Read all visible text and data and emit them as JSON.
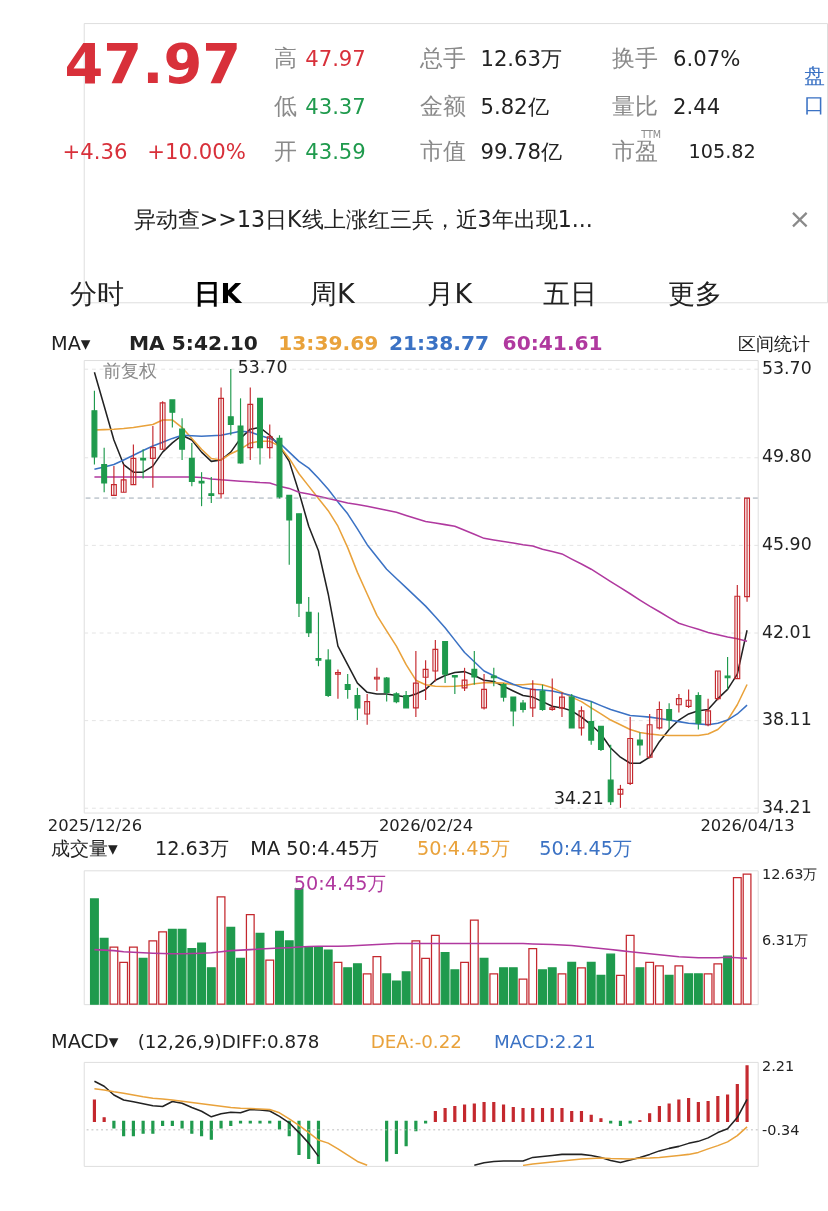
{
  "chart_data": [
    {
      "type": "other",
      "annotations": [
        "47.97",
        "+4.36",
        "+10.00%",
        "高",
        "47.97",
        "低",
        "43.37",
        "开",
        "43.59",
        "总手",
        "12.63万",
        "金额",
        "5.82亿",
        "市值",
        "99.78亿",
        "换手",
        "6.07%",
        "量比",
        "2.44",
        "市盈",
        "TTM",
        "105.82",
        "盘口",
        "异动查>>13日K线上涨红三兵，近3年出现1...",
        "×",
        "分时",
        "日K",
        "周K",
        "月K",
        "五日",
        "更多"
      ]
    },
    {
      "type": "candlestick",
      "title": "MA▾",
      "categories": [
        "2025/12/26",
        null,
        null,
        null,
        null,
        null,
        null,
        null,
        null,
        null,
        null,
        null,
        null,
        null,
        null,
        null,
        null,
        null,
        null,
        null,
        null,
        null,
        null,
        null,
        null,
        null,
        null,
        null,
        null,
        null,
        null,
        null,
        null,
        null,
        "2026/02/24",
        null,
        null,
        null,
        null,
        null,
        null,
        null,
        null,
        null,
        null,
        null,
        null,
        null,
        null,
        null,
        null,
        null,
        null,
        null,
        null,
        null,
        null,
        null,
        null,
        null,
        null,
        null,
        null,
        null,
        null,
        null,
        null,
        "2026/04/13"
      ],
      "ohlc": [
        [
          51.85,
          52.74,
          49.46,
          49.8
        ],
        [
          49.46,
          50.21,
          48.23,
          48.64
        ],
        [
          48.09,
          49.39,
          48.09,
          48.57
        ],
        [
          48.23,
          49.46,
          48.23,
          48.78
        ],
        [
          48.57,
          50.35,
          48.57,
          49.73
        ],
        [
          49.73,
          50.14,
          48.84,
          49.66
        ],
        [
          49.73,
          51.17,
          48.43,
          50.21
        ],
        [
          50.14,
          52.27,
          50.14,
          52.2
        ],
        [
          52.33,
          52.33,
          51.1,
          51.78
        ],
        [
          51.03,
          51.51,
          49.66,
          50.14
        ],
        [
          49.73,
          50.42,
          48.5,
          48.71
        ],
        [
          48.71,
          49.12,
          47.61,
          48.64
        ],
        [
          48.16,
          48.91,
          47.75,
          48.09
        ],
        [
          48.16,
          52.88,
          47.95,
          52.4
        ],
        [
          51.58,
          53.7,
          50.76,
          51.24
        ],
        [
          51.17,
          52.4,
          49.5,
          49.53
        ],
        [
          50.21,
          52.88,
          49.66,
          52.13
        ],
        [
          52.4,
          52.4,
          49.46,
          50.21
        ],
        [
          50.21,
          51.24,
          49.73,
          50.69
        ],
        [
          50.62,
          50.76,
          47.95,
          48.02
        ],
        [
          48.09,
          48.09,
          45.01,
          47.0
        ],
        [
          47.27,
          47.27,
          42.69,
          43.3
        ],
        [
          42.89,
          43.58,
          41.8,
          41.99
        ],
        [
          40.84,
          42.89,
          40.5,
          40.77
        ],
        [
          40.77,
          41.25,
          39.13,
          39.2
        ],
        [
          40.15,
          40.36,
          39.06,
          40.22
        ],
        [
          39.68,
          40.16,
          39.06,
          39.47
        ],
        [
          39.2,
          39.54,
          38.11,
          38.65
        ],
        [
          38.38,
          39.27,
          37.9,
          38.93
        ],
        [
          39.94,
          40.43,
          39.4,
          40.01
        ],
        [
          39.97,
          40.02,
          38.93,
          39.34
        ],
        [
          39.27,
          39.34,
          38.86,
          38.93
        ],
        [
          39.2,
          39.4,
          38.65,
          38.65
        ],
        [
          38.65,
          41.18,
          38.24,
          39.75
        ],
        [
          40.01,
          40.77,
          39.0,
          40.36
        ],
        [
          40.29,
          41.66,
          39.82,
          41.25
        ],
        [
          41.59,
          41.59,
          39.75,
          40.15
        ],
        [
          40.08,
          40.08,
          39.27,
          40.02
        ],
        [
          39.54,
          40.43,
          39.4,
          39.88
        ],
        [
          40.36,
          41.18,
          39.68,
          40.02
        ],
        [
          38.65,
          40.15,
          38.58,
          39.47
        ],
        [
          40.06,
          40.43,
          39.61,
          39.99
        ],
        [
          39.68,
          39.75,
          38.93,
          39.13
        ],
        [
          39.13,
          39.13,
          37.83,
          38.52
        ],
        [
          38.86,
          39.0,
          38.45,
          38.58
        ],
        [
          38.65,
          39.88,
          38.24,
          39.47
        ],
        [
          39.4,
          39.68,
          38.52,
          38.58
        ],
        [
          38.58,
          39.95,
          38.52,
          38.65
        ],
        [
          38.65,
          39.34,
          38.24,
          39.13
        ],
        [
          39.13,
          39.27,
          37.76,
          37.76
        ],
        [
          37.76,
          38.72,
          37.42,
          38.52
        ],
        [
          38.04,
          38.93,
          37.01,
          37.22
        ],
        [
          37.83,
          37.83,
          36.74,
          36.81
        ],
        [
          35.44,
          37.01,
          34.34,
          34.48
        ],
        [
          34.82,
          35.23,
          34.21,
          35.03
        ],
        [
          35.3,
          38.24,
          35.23,
          37.29
        ],
        [
          37.22,
          37.56,
          36.53,
          37.01
        ],
        [
          36.46,
          38.38,
          36.4,
          37.9
        ],
        [
          37.76,
          38.93,
          37.69,
          38.58
        ],
        [
          38.58,
          38.86,
          37.69,
          38.11
        ],
        [
          38.79,
          39.27,
          38.45,
          39.06
        ],
        [
          38.72,
          39.47,
          38.65,
          38.99
        ],
        [
          39.2,
          39.34,
          37.69,
          37.97
        ],
        [
          37.9,
          39.06,
          37.83,
          38.52
        ],
        [
          39.06,
          40.29,
          38.99,
          40.29
        ],
        [
          40.06,
          40.91,
          39.47,
          39.99
        ],
        [
          39.95,
          44.11,
          39.95,
          43.61
        ],
        [
          43.59,
          47.97,
          43.37,
          47.97
        ]
      ],
      "colors": [
        "#1f9a4d",
        "#1f9a4d",
        "#c4282e",
        "#c4282e",
        "#c4282e",
        "#1f9a4d",
        "#c4282e",
        "#c4282e",
        "#1f9a4d",
        "#1f9a4d",
        "#1f9a4d",
        "#1f9a4d",
        "#1f9a4d",
        "#c4282e",
        "#1f9a4d",
        "#1f9a4d",
        "#c4282e",
        "#1f9a4d",
        "#c4282e",
        "#1f9a4d",
        "#1f9a4d",
        "#1f9a4d",
        "#1f9a4d",
        "#1f9a4d",
        "#1f9a4d",
        "#c4282e",
        "#1f9a4d",
        "#1f9a4d",
        "#c4282e",
        "#c4282e",
        "#1f9a4d",
        "#1f9a4d",
        "#1f9a4d",
        "#c4282e",
        "#c4282e",
        "#c4282e",
        "#1f9a4d",
        "#1f9a4d",
        "#c4282e",
        "#1f9a4d",
        "#c4282e",
        "#1f9a4d",
        "#1f9a4d",
        "#1f9a4d",
        "#1f9a4d",
        "#c4282e",
        "#1f9a4d",
        "#c4282e",
        "#c4282e",
        "#1f9a4d",
        "#c4282e",
        "#1f9a4d",
        "#1f9a4d",
        "#1f9a4d",
        "#c4282e",
        "#c4282e",
        "#1f9a4d",
        "#c4282e",
        "#c4282e",
        "#1f9a4d",
        "#c4282e",
        "#c4282e",
        "#1f9a4d",
        "#c4282e",
        "#c4282e",
        "#1f9a4d",
        "#c4282e",
        "#c4282e"
      ],
      "series": [
        {
          "type": "line",
          "name": "MA 5:42.10",
          "color": "#222222",
          "values": [
            53.56,
            52.06,
            50.55,
            49.46,
            49.12,
            49.12,
            49.39,
            50.01,
            50.42,
            50.76,
            50.55,
            50.01,
            49.6,
            49.66,
            50.01,
            50.62,
            51.03,
            51.1,
            50.76,
            50.28,
            49.6,
            48.23,
            46.72,
            45.63,
            43.71,
            41.39,
            40.57,
            39.75,
            39.34,
            39.27,
            39.27,
            39.2,
            39.13,
            39.27,
            39.47,
            39.88,
            40.09,
            40.22,
            40.26,
            40.09,
            39.88,
            39.82,
            39.61,
            39.4,
            39.2,
            39.13,
            38.93,
            38.72,
            38.65,
            38.52,
            38.24,
            37.9,
            37.49,
            36.87,
            36.46,
            36.19,
            36.19,
            36.46,
            37.15,
            37.69,
            38.11,
            38.38,
            38.52,
            38.58,
            39.06,
            39.47,
            40.15,
            42.1
          ]
        },
        {
          "type": "line",
          "name": "13:39.69",
          "color": "#e9a23b",
          "values": [
            50.99,
            51.01,
            51.03,
            51.06,
            51.1,
            51.17,
            51.24,
            51.44,
            51.44,
            51.1,
            50.62,
            50.14,
            49.73,
            49.66,
            49.94,
            50.14,
            50.42,
            50.49,
            50.49,
            50.28,
            49.73,
            49.05,
            48.5,
            47.95,
            47.41,
            46.72,
            45.77,
            44.67,
            43.71,
            42.76,
            42.07,
            41.39,
            40.57,
            39.88,
            39.68,
            39.61,
            39.6,
            39.61,
            39.64,
            39.72,
            39.77,
            39.77,
            39.75,
            39.68,
            39.68,
            39.72,
            39.68,
            39.54,
            39.34,
            39.13,
            38.93,
            38.65,
            38.38,
            38.11,
            37.9,
            37.69,
            37.56,
            37.49,
            37.45,
            37.42,
            37.42,
            37.42,
            37.42,
            37.49,
            37.69,
            38.11,
            38.79,
            39.69
          ]
        },
        {
          "type": "line",
          "name": "21:38.77",
          "color": "#3b72c4",
          "values": [
            49.25,
            49.35,
            49.46,
            49.66,
            49.87,
            50.08,
            50.28,
            50.45,
            50.62,
            50.76,
            50.74,
            50.72,
            50.74,
            50.76,
            50.85,
            50.94,
            50.9,
            50.75,
            50.62,
            50.42,
            50.01,
            49.6,
            49.3,
            48.85,
            48.36,
            47.8,
            47.27,
            46.6,
            45.9,
            45.35,
            44.81,
            44.4,
            43.99,
            43.58,
            43.17,
            42.7,
            42.21,
            41.66,
            41.11,
            40.7,
            40.29,
            40.08,
            39.88,
            39.7,
            39.54,
            39.47,
            39.44,
            39.4,
            39.3,
            39.2,
            39.06,
            38.93,
            38.75,
            38.58,
            38.45,
            38.31,
            38.28,
            38.24,
            38.18,
            38.11,
            38.04,
            37.97,
            37.94,
            37.9,
            37.97,
            38.11,
            38.38,
            38.77
          ]
        },
        {
          "type": "line",
          "name": "60:41.61",
          "color": "#b0399f",
          "values": [
            48.91,
            48.91,
            48.91,
            48.91,
            48.91,
            48.91,
            48.91,
            48.91,
            48.91,
            48.91,
            48.91,
            48.88,
            48.82,
            48.78,
            48.75,
            48.72,
            48.69,
            48.66,
            48.64,
            48.5,
            48.4,
            48.23,
            48.15,
            48.05,
            47.95,
            47.85,
            47.75,
            47.68,
            47.61,
            47.52,
            47.43,
            47.34,
            47.2,
            47.06,
            46.93,
            46.86,
            46.79,
            46.72,
            46.54,
            46.36,
            46.18,
            46.11,
            46.04,
            45.97,
            45.9,
            45.84,
            45.7,
            45.6,
            45.49,
            45.26,
            45.04,
            44.81,
            44.54,
            44.26,
            43.99,
            43.72,
            43.44,
            43.17,
            42.92,
            42.66,
            42.41,
            42.27,
            42.14,
            42.0,
            41.9,
            41.8,
            41.72,
            41.61
          ]
        }
      ],
      "ylim": [
        34.0,
        54.1
      ],
      "yticks": [
        {
          "value": 34.21,
          "label": "34.21"
        },
        {
          "value": 38.11,
          "label": "38.11"
        },
        {
          "value": 42.01,
          "label": "42.01"
        },
        {
          "value": 45.9,
          "label": "45.90"
        },
        {
          "value": 49.8,
          "label": "49.80"
        },
        {
          "value": 53.7,
          "label": "53.70"
        }
      ],
      "grid": "y",
      "ref_lines": [
        {
          "axis": "y",
          "value": 47.97,
          "color": "#9aa5b1",
          "line_style": "dashed"
        }
      ],
      "annotations": [
        "前复权",
        "区间统计",
        "53.70",
        "34.21"
      ]
    },
    {
      "type": "bar",
      "title": "成交量▾",
      "tick_labels": "y",
      "categories": [
        null,
        null,
        null,
        null,
        null,
        null,
        null,
        null,
        null,
        null,
        null,
        null,
        null,
        null,
        null,
        null,
        null,
        null,
        null,
        null,
        null,
        null,
        null,
        null,
        null,
        null,
        null,
        null,
        null,
        null,
        null,
        null,
        null,
        null,
        null,
        null,
        null,
        null,
        null,
        null,
        null,
        null,
        null,
        null,
        null,
        null,
        null,
        null,
        null,
        null,
        null,
        null,
        null,
        null,
        null,
        null,
        null,
        null,
        null,
        null,
        null,
        null,
        null,
        null,
        null,
        null,
        null,
        null
      ],
      "values": [
        10.22,
        6.38,
        5.55,
        4.07,
        5.55,
        4.46,
        6.14,
        7.02,
        7.27,
        7.27,
        5.4,
        5.94,
        3.53,
        10.42,
        7.46,
        4.46,
        8.69,
        6.88,
        4.27,
        7.07,
        6.14,
        11.21,
        5.55,
        5.55,
        5.25,
        4.07,
        3.53,
        3.92,
        2.94,
        4.61,
        2.94,
        2.25,
        3.13,
        6.14,
        4.46,
        6.68,
        5.0,
        3.33,
        4.07,
        8.16,
        4.46,
        2.94,
        3.53,
        3.53,
        2.44,
        5.4,
        3.33,
        3.53,
        2.94,
        4.07,
        3.53,
        4.07,
        2.79,
        4.86,
        2.79,
        6.68,
        3.53,
        4.07,
        3.72,
        2.79,
        3.72,
        2.94,
        2.94,
        2.94,
        3.92,
        4.66,
        12.29,
        12.63
      ],
      "colors": [
        "#1f9a4d",
        "#1f9a4d",
        "#c4282e",
        "#c4282e",
        "#c4282e",
        "#1f9a4d",
        "#c4282e",
        "#c4282e",
        "#1f9a4d",
        "#1f9a4d",
        "#1f9a4d",
        "#1f9a4d",
        "#1f9a4d",
        "#c4282e",
        "#1f9a4d",
        "#1f9a4d",
        "#c4282e",
        "#1f9a4d",
        "#c4282e",
        "#1f9a4d",
        "#1f9a4d",
        "#1f9a4d",
        "#1f9a4d",
        "#1f9a4d",
        "#1f9a4d",
        "#c4282e",
        "#1f9a4d",
        "#1f9a4d",
        "#c4282e",
        "#c4282e",
        "#1f9a4d",
        "#1f9a4d",
        "#1f9a4d",
        "#c4282e",
        "#c4282e",
        "#c4282e",
        "#1f9a4d",
        "#1f9a4d",
        "#c4282e",
        "#c4282e",
        "#1f9a4d",
        "#c4282e",
        "#1f9a4d",
        "#1f9a4d",
        "#c4282e",
        "#c4282e",
        "#1f9a4d",
        "#1f9a4d",
        "#c4282e",
        "#1f9a4d",
        "#c4282e",
        "#1f9a4d",
        "#1f9a4d",
        "#1f9a4d",
        "#c4282e",
        "#c4282e",
        "#1f9a4d",
        "#c4282e",
        "#c4282e",
        "#1f9a4d",
        "#c4282e",
        "#1f9a4d",
        "#1f9a4d",
        "#c4282e",
        "#c4282e",
        "#1f9a4d",
        "#c4282e",
        "#c4282e"
      ],
      "series": [
        {
          "type": "line",
          "name": "50:4.45万",
          "color": "#b0399f",
          "values": [
            5.3,
            5.25,
            5.2,
            5.1,
            5.05,
            5.0,
            4.95,
            4.92,
            4.9,
            4.9,
            4.92,
            4.95,
            5.0,
            5.1,
            5.2,
            5.25,
            5.3,
            5.35,
            5.4,
            5.45,
            5.49,
            5.55,
            5.6,
            5.62,
            5.62,
            5.62,
            5.65,
            5.7,
            5.75,
            5.8,
            5.85,
            5.89,
            5.89,
            5.89,
            5.89,
            5.89,
            5.89,
            5.89,
            5.89,
            5.89,
            5.89,
            5.89,
            5.89,
            5.89,
            5.89,
            5.85,
            5.82,
            5.8,
            5.75,
            5.7,
            5.6,
            5.5,
            5.4,
            5.3,
            5.2,
            5.1,
            5.0,
            4.9,
            4.8,
            4.7,
            4.6,
            4.55,
            4.51,
            4.51,
            4.51,
            4.55,
            4.5,
            4.45
          ]
        }
      ],
      "ylim": [
        0,
        13.0
      ],
      "yticks": [
        {
          "value": 6.31,
          "label": "6.31万"
        },
        {
          "value": 12.63,
          "label": "12.63万"
        }
      ],
      "annotations": [
        "12.63万",
        "MA 50:4.45万",
        "50:4.45万",
        "50:4.45万"
      ]
    },
    {
      "type": "bar",
      "title": "MACD▾",
      "tick_labels": "y",
      "categories": [
        null,
        null,
        null,
        null,
        null,
        null,
        null,
        null,
        null,
        null,
        null,
        null,
        null,
        null,
        null,
        null,
        null,
        null,
        null,
        null,
        null,
        null,
        null,
        null,
        null,
        null,
        null,
        null,
        null,
        null,
        null,
        null,
        null,
        null,
        null,
        null,
        null,
        null,
        null,
        null,
        null,
        null,
        null,
        null,
        null,
        null,
        null,
        null,
        null,
        null,
        null,
        null,
        null,
        null,
        null,
        null,
        null,
        null,
        null,
        null,
        null,
        null,
        null,
        null,
        null,
        null,
        null,
        null
      ],
      "values": [
        0.85,
        0.14,
        -0.26,
        -0.57,
        -0.57,
        -0.47,
        -0.47,
        -0.16,
        -0.16,
        -0.26,
        -0.47,
        -0.57,
        -0.71,
        -0.26,
        -0.16,
        -0.06,
        -0.06,
        -0.06,
        -0.06,
        -0.3,
        -0.57,
        -1.32,
        -1.48,
        -1.68,
        null,
        null,
        null,
        null,
        null,
        null,
        -1.58,
        -1.28,
        -0.97,
        -0.37,
        -0.06,
        0.39,
        0.51,
        0.59,
        0.65,
        0.69,
        0.75,
        0.75,
        0.65,
        0.55,
        0.51,
        0.51,
        0.51,
        0.51,
        0.51,
        0.39,
        0.39,
        0.24,
        0.1,
        -0.06,
        -0.16,
        -0.06,
        0.02,
        0.3,
        0.59,
        0.69,
        0.85,
        0.91,
        0.75,
        0.79,
        0.99,
        1.05,
        1.46,
        2.21
      ],
      "colors": [
        "#c4282e",
        "#c4282e",
        "#1f9a4d",
        "#1f9a4d",
        "#1f9a4d",
        "#1f9a4d",
        "#1f9a4d",
        "#1f9a4d",
        "#1f9a4d",
        "#1f9a4d",
        "#1f9a4d",
        "#1f9a4d",
        "#1f9a4d",
        "#1f9a4d",
        "#1f9a4d",
        "#1f9a4d",
        "#1f9a4d",
        "#1f9a4d",
        "#1f9a4d",
        "#1f9a4d",
        "#1f9a4d",
        "#1f9a4d",
        "#1f9a4d",
        "#1f9a4d",
        "#1f9a4d",
        "#1f9a4d",
        "#1f9a4d",
        "#1f9a4d",
        "#1f9a4d",
        "#1f9a4d",
        "#1f9a4d",
        "#1f9a4d",
        "#1f9a4d",
        "#1f9a4d",
        "#1f9a4d",
        "#c4282e",
        "#c4282e",
        "#c4282e",
        "#c4282e",
        "#c4282e",
        "#c4282e",
        "#c4282e",
        "#c4282e",
        "#c4282e",
        "#c4282e",
        "#c4282e",
        "#c4282e",
        "#c4282e",
        "#c4282e",
        "#c4282e",
        "#c4282e",
        "#c4282e",
        "#c4282e",
        "#1f9a4d",
        "#1f9a4d",
        "#1f9a4d",
        "#c4282e",
        "#c4282e",
        "#c4282e",
        "#c4282e",
        "#c4282e",
        "#c4282e",
        "#c4282e",
        "#c4282e",
        "#c4282e",
        "#c4282e",
        "#c4282e",
        "#c4282e"
      ],
      "series": [
        {
          "type": "line",
          "name": "(12,26,9)DIFF:0.878",
          "color": "#222222",
          "values": [
            1.6,
            1.4,
            1.05,
            0.85,
            0.78,
            0.7,
            0.62,
            0.59,
            0.79,
            0.72,
            0.55,
            0.4,
            0.18,
            0.3,
            0.36,
            0.34,
            0.47,
            0.45,
            0.41,
            0.2,
            -0.06,
            -0.45,
            -0.87,
            -1.4,
            null,
            null,
            null,
            null,
            null,
            null,
            null,
            null,
            null,
            null,
            null,
            null,
            null,
            null,
            null,
            -1.75,
            -1.65,
            -1.6,
            -1.58,
            -1.58,
            -1.58,
            -1.44,
            -1.4,
            -1.36,
            -1.32,
            -1.32,
            -1.32,
            -1.36,
            -1.44,
            -1.56,
            -1.64,
            -1.54,
            -1.44,
            -1.32,
            -1.18,
            -1.08,
            -1.0,
            -0.88,
            -0.8,
            -0.66,
            -0.45,
            -0.3,
            0.15,
            0.878
          ]
        },
        {
          "type": "line",
          "name": "DEA:-0.22",
          "color": "#e9a23b",
          "values": [
            1.3,
            1.25,
            1.18,
            1.12,
            1.05,
            0.98,
            0.92,
            0.89,
            0.85,
            0.8,
            0.75,
            0.7,
            0.65,
            0.6,
            0.55,
            0.52,
            0.51,
            0.49,
            0.47,
            0.34,
            0.1,
            -0.16,
            -0.45,
            -0.75,
            -0.87,
            -1.1,
            -1.35,
            -1.6,
            -1.75,
            null,
            null,
            null,
            null,
            null,
            null,
            null,
            null,
            null,
            null,
            null,
            null,
            null,
            null,
            null,
            -1.76,
            -1.7,
            -1.66,
            -1.62,
            -1.58,
            -1.54,
            -1.5,
            -1.48,
            -1.46,
            -1.48,
            -1.49,
            -1.5,
            -1.47,
            -1.46,
            -1.44,
            -1.4,
            -1.36,
            -1.32,
            -1.24,
            -1.1,
            -0.97,
            -0.82,
            -0.57,
            -0.22
          ]
        }
      ],
      "ylim": [
        -1.78,
        2.37
      ],
      "yticks": [
        2.21,
        -0.34
      ],
      "ref_lines": [
        {
          "axis": "y",
          "value": -0.34,
          "color": "#bbbbbb",
          "line_style": "dotted"
        }
      ],
      "annotations": [
        "MACD:2.21"
      ]
    }
  ]
}
